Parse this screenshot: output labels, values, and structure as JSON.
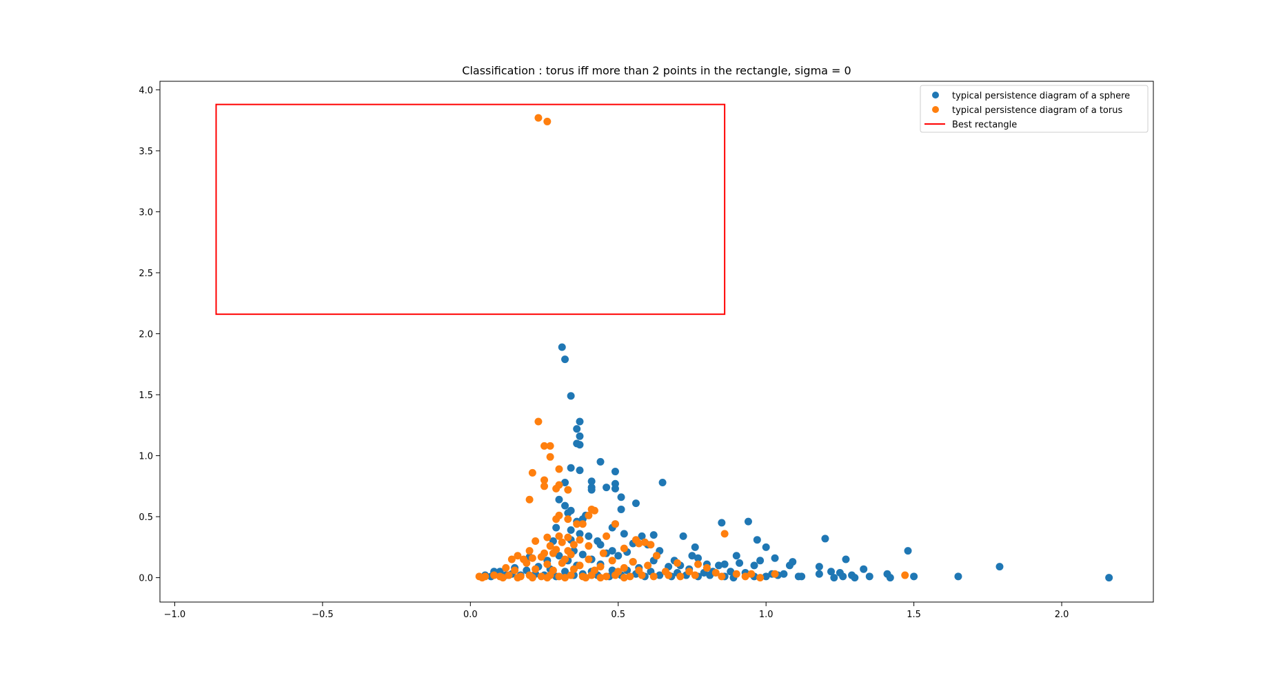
{
  "chart_data": {
    "type": "scatter",
    "title": "Classification : torus iff more than 2 points in the rectangle, sigma = 0",
    "xlabel": "",
    "ylabel": "",
    "xlim": [
      -1.05,
      2.31
    ],
    "ylim": [
      -0.2,
      4.07
    ],
    "xticks": [
      -1.0,
      -0.5,
      0.0,
      0.5,
      1.0,
      1.5,
      2.0
    ],
    "xtick_labels": [
      "−1.0",
      "−0.5",
      "0.0",
      "0.5",
      "1.0",
      "1.5",
      "2.0"
    ],
    "yticks": [
      0.0,
      0.5,
      1.0,
      1.5,
      2.0,
      2.5,
      3.0,
      3.5,
      4.0
    ],
    "ytick_labels": [
      "0.0",
      "0.5",
      "1.0",
      "1.5",
      "2.0",
      "2.5",
      "3.0",
      "3.5",
      "4.0"
    ],
    "grid": false,
    "legend_position": "top-right",
    "series": [
      {
        "name": "typical persistence diagram of a sphere",
        "color": "#1f77b4",
        "marker": "circle",
        "points": [
          [
            0.31,
            1.89
          ],
          [
            0.32,
            1.79
          ],
          [
            0.34,
            1.49
          ],
          [
            0.37,
            1.28
          ],
          [
            0.36,
            1.22
          ],
          [
            0.37,
            1.16
          ],
          [
            0.36,
            1.1
          ],
          [
            0.37,
            1.09
          ],
          [
            0.44,
            0.95
          ],
          [
            0.34,
            0.9
          ],
          [
            0.37,
            0.88
          ],
          [
            0.49,
            0.87
          ],
          [
            0.65,
            0.78
          ],
          [
            0.32,
            0.78
          ],
          [
            0.41,
            0.79
          ],
          [
            0.46,
            0.74
          ],
          [
            0.49,
            0.77
          ],
          [
            0.41,
            0.74
          ],
          [
            0.41,
            0.72
          ],
          [
            0.49,
            0.73
          ],
          [
            0.51,
            0.66
          ],
          [
            0.3,
            0.64
          ],
          [
            0.56,
            0.61
          ],
          [
            0.32,
            0.59
          ],
          [
            0.34,
            0.55
          ],
          [
            0.33,
            0.53
          ],
          [
            0.39,
            0.51
          ],
          [
            0.51,
            0.56
          ],
          [
            0.38,
            0.48
          ],
          [
            0.36,
            0.46
          ],
          [
            0.49,
            0.44
          ],
          [
            0.85,
            0.45
          ],
          [
            0.94,
            0.46
          ],
          [
            0.29,
            0.41
          ],
          [
            0.34,
            0.39
          ],
          [
            0.48,
            0.41
          ],
          [
            0.37,
            0.36
          ],
          [
            0.4,
            0.34
          ],
          [
            0.52,
            0.36
          ],
          [
            0.62,
            0.35
          ],
          [
            0.58,
            0.34
          ],
          [
            0.72,
            0.34
          ],
          [
            0.97,
            0.31
          ],
          [
            1.2,
            0.32
          ],
          [
            0.28,
            0.3
          ],
          [
            0.34,
            0.31
          ],
          [
            0.43,
            0.3
          ],
          [
            0.44,
            0.27
          ],
          [
            0.55,
            0.28
          ],
          [
            0.6,
            0.27
          ],
          [
            0.76,
            0.25
          ],
          [
            1.0,
            0.25
          ],
          [
            1.48,
            0.22
          ],
          [
            0.35,
            0.22
          ],
          [
            0.48,
            0.22
          ],
          [
            0.53,
            0.21
          ],
          [
            0.64,
            0.22
          ],
          [
            0.75,
            0.18
          ],
          [
            0.9,
            0.18
          ],
          [
            0.2,
            0.17
          ],
          [
            0.3,
            0.18
          ],
          [
            0.38,
            0.19
          ],
          [
            0.46,
            0.2
          ],
          [
            0.5,
            0.18
          ],
          [
            0.63,
            0.18
          ],
          [
            0.77,
            0.16
          ],
          [
            1.03,
            0.16
          ],
          [
            1.27,
            0.15
          ],
          [
            0.26,
            0.14
          ],
          [
            0.33,
            0.14
          ],
          [
            0.41,
            0.15
          ],
          [
            0.55,
            0.13
          ],
          [
            0.62,
            0.14
          ],
          [
            0.69,
            0.14
          ],
          [
            0.86,
            0.11
          ],
          [
            0.91,
            0.12
          ],
          [
            0.98,
            0.14
          ],
          [
            1.09,
            0.13
          ],
          [
            0.71,
            0.1
          ],
          [
            0.8,
            0.11
          ],
          [
            0.84,
            0.1
          ],
          [
            0.96,
            0.1
          ],
          [
            1.08,
            0.1
          ],
          [
            1.18,
            0.09
          ],
          [
            1.33,
            0.07
          ],
          [
            1.79,
            0.09
          ],
          [
            0.15,
            0.08
          ],
          [
            0.23,
            0.09
          ],
          [
            0.36,
            0.1
          ],
          [
            0.44,
            0.11
          ],
          [
            0.57,
            0.08
          ],
          [
            0.67,
            0.09
          ],
          [
            0.74,
            0.07
          ],
          [
            0.88,
            0.05
          ],
          [
            1.22,
            0.05
          ],
          [
            1.25,
            0.04
          ],
          [
            0.08,
            0.05
          ],
          [
            0.1,
            0.05
          ],
          [
            0.19,
            0.06
          ],
          [
            0.27,
            0.07
          ],
          [
            0.32,
            0.05
          ],
          [
            0.41,
            0.05
          ],
          [
            0.48,
            0.06
          ],
          [
            0.53,
            0.06
          ],
          [
            0.61,
            0.05
          ],
          [
            0.7,
            0.04
          ],
          [
            0.79,
            0.04
          ],
          [
            0.82,
            0.05
          ],
          [
            0.93,
            0.04
          ],
          [
            1.02,
            0.03
          ],
          [
            1.06,
            0.03
          ],
          [
            1.18,
            0.03
          ],
          [
            1.29,
            0.02
          ],
          [
            1.41,
            0.03
          ],
          [
            0.05,
            0.02
          ],
          [
            0.07,
            0.01
          ],
          [
            0.12,
            0.02
          ],
          [
            0.14,
            0.03
          ],
          [
            0.17,
            0.02
          ],
          [
            0.22,
            0.03
          ],
          [
            0.25,
            0.02
          ],
          [
            0.29,
            0.01
          ],
          [
            0.35,
            0.02
          ],
          [
            0.38,
            0.03
          ],
          [
            0.43,
            0.02
          ],
          [
            0.47,
            0.01
          ],
          [
            0.51,
            0.02
          ],
          [
            0.56,
            0.03
          ],
          [
            0.59,
            0.01
          ],
          [
            0.64,
            0.02
          ],
          [
            0.68,
            0.01
          ],
          [
            0.73,
            0.02
          ],
          [
            0.77,
            0.01
          ],
          [
            0.81,
            0.02
          ],
          [
            0.86,
            0.01
          ],
          [
            0.89,
            0.0
          ],
          [
            0.96,
            0.01
          ],
          [
            1.0,
            0.01
          ],
          [
            1.04,
            0.02
          ],
          [
            1.11,
            0.01
          ],
          [
            1.12,
            0.01
          ],
          [
            1.23,
            0.0
          ],
          [
            1.26,
            0.01
          ],
          [
            1.3,
            0.0
          ],
          [
            1.35,
            0.01
          ],
          [
            1.42,
            0.0
          ],
          [
            1.5,
            0.01
          ],
          [
            1.65,
            0.01
          ],
          [
            2.16,
            0.0
          ]
        ]
      },
      {
        "name": "typical persistence diagram of a torus",
        "color": "#ff7f0e",
        "marker": "circle",
        "points": [
          [
            0.23,
            3.77
          ],
          [
            0.26,
            3.74
          ],
          [
            0.23,
            1.28
          ],
          [
            0.25,
            1.08
          ],
          [
            0.27,
            1.08
          ],
          [
            0.27,
            0.99
          ],
          [
            0.3,
            0.89
          ],
          [
            0.21,
            0.86
          ],
          [
            0.25,
            0.8
          ],
          [
            0.3,
            0.76
          ],
          [
            0.25,
            0.75
          ],
          [
            0.29,
            0.73
          ],
          [
            0.33,
            0.72
          ],
          [
            0.2,
            0.64
          ],
          [
            0.41,
            0.56
          ],
          [
            0.42,
            0.55
          ],
          [
            0.3,
            0.51
          ],
          [
            0.4,
            0.51
          ],
          [
            0.29,
            0.48
          ],
          [
            0.33,
            0.48
          ],
          [
            0.49,
            0.44
          ],
          [
            0.36,
            0.44
          ],
          [
            0.38,
            0.44
          ],
          [
            0.86,
            0.36
          ],
          [
            0.26,
            0.33
          ],
          [
            0.3,
            0.34
          ],
          [
            0.33,
            0.33
          ],
          [
            0.37,
            0.31
          ],
          [
            0.46,
            0.34
          ],
          [
            0.56,
            0.31
          ],
          [
            0.57,
            0.28
          ],
          [
            0.59,
            0.29
          ],
          [
            0.61,
            0.27
          ],
          [
            0.22,
            0.3
          ],
          [
            0.31,
            0.29
          ],
          [
            0.35,
            0.27
          ],
          [
            0.27,
            0.26
          ],
          [
            0.29,
            0.23
          ],
          [
            0.33,
            0.22
          ],
          [
            0.4,
            0.26
          ],
          [
            0.52,
            0.24
          ],
          [
            0.2,
            0.22
          ],
          [
            0.25,
            0.2
          ],
          [
            0.28,
            0.2
          ],
          [
            0.34,
            0.19
          ],
          [
            0.45,
            0.2
          ],
          [
            0.63,
            0.18
          ],
          [
            0.16,
            0.18
          ],
          [
            0.18,
            0.15
          ],
          [
            0.21,
            0.16
          ],
          [
            0.24,
            0.17
          ],
          [
            0.32,
            0.15
          ],
          [
            0.4,
            0.15
          ],
          [
            0.48,
            0.14
          ],
          [
            0.55,
            0.13
          ],
          [
            0.7,
            0.12
          ],
          [
            0.14,
            0.15
          ],
          [
            0.19,
            0.12
          ],
          [
            0.26,
            0.11
          ],
          [
            0.31,
            0.12
          ],
          [
            0.37,
            0.1
          ],
          [
            0.44,
            0.09
          ],
          [
            0.52,
            0.08
          ],
          [
            0.6,
            0.1
          ],
          [
            0.77,
            0.11
          ],
          [
            0.8,
            0.08
          ],
          [
            0.12,
            0.08
          ],
          [
            0.15,
            0.06
          ],
          [
            0.22,
            0.07
          ],
          [
            0.28,
            0.06
          ],
          [
            0.35,
            0.07
          ],
          [
            0.42,
            0.06
          ],
          [
            0.5,
            0.05
          ],
          [
            0.57,
            0.06
          ],
          [
            0.66,
            0.05
          ],
          [
            0.74,
            0.05
          ],
          [
            0.83,
            0.04
          ],
          [
            0.9,
            0.03
          ],
          [
            0.95,
            0.03
          ],
          [
            1.03,
            0.03
          ],
          [
            1.47,
            0.02
          ],
          [
            0.03,
            0.01
          ],
          [
            0.05,
            0.01
          ],
          [
            0.08,
            0.02
          ],
          [
            0.1,
            0.01
          ],
          [
            0.13,
            0.02
          ],
          [
            0.17,
            0.01
          ],
          [
            0.2,
            0.02
          ],
          [
            0.24,
            0.01
          ],
          [
            0.27,
            0.02
          ],
          [
            0.3,
            0.01
          ],
          [
            0.34,
            0.02
          ],
          [
            0.38,
            0.01
          ],
          [
            0.41,
            0.02
          ],
          [
            0.46,
            0.01
          ],
          [
            0.49,
            0.02
          ],
          [
            0.54,
            0.01
          ],
          [
            0.58,
            0.02
          ],
          [
            0.62,
            0.01
          ],
          [
            0.67,
            0.02
          ],
          [
            0.71,
            0.01
          ],
          [
            0.76,
            0.02
          ],
          [
            0.85,
            0.01
          ],
          [
            0.93,
            0.01
          ],
          [
            0.98,
            0.0
          ],
          [
            0.04,
            0.0
          ],
          [
            0.11,
            0.0
          ],
          [
            0.16,
            0.0
          ],
          [
            0.21,
            0.0
          ],
          [
            0.26,
            0.0
          ],
          [
            0.32,
            0.0
          ],
          [
            0.39,
            0.0
          ],
          [
            0.44,
            0.0
          ],
          [
            0.52,
            0.0
          ]
        ]
      }
    ],
    "rectangle": {
      "name": "Best rectangle",
      "color": "#ff0000",
      "x0": -0.86,
      "x1": 0.86,
      "y0": 2.16,
      "y1": 3.88
    }
  }
}
